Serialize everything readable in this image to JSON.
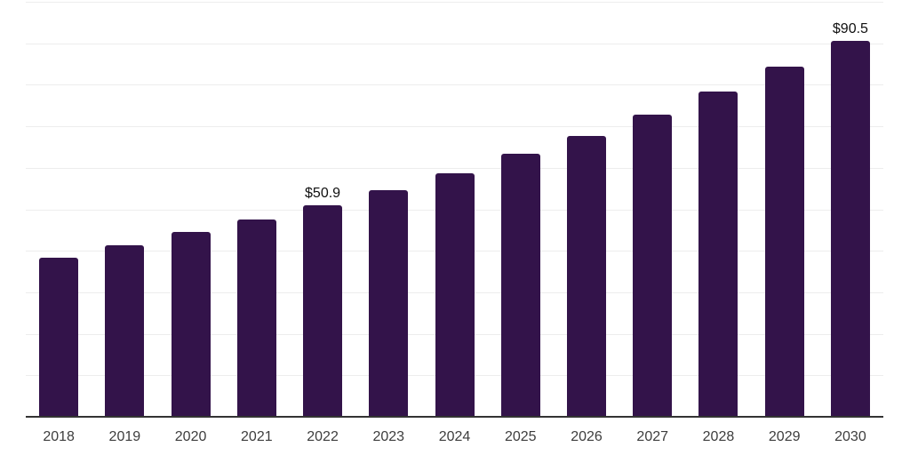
{
  "chart_data": {
    "type": "bar",
    "title": "",
    "xlabel": "",
    "ylabel": "",
    "categories": [
      "2018",
      "2019",
      "2020",
      "2021",
      "2022",
      "2023",
      "2024",
      "2025",
      "2026",
      "2027",
      "2028",
      "2029",
      "2030"
    ],
    "values": [
      38.4,
      41.3,
      44.6,
      47.5,
      50.9,
      54.7,
      58.6,
      63.3,
      67.7,
      72.9,
      78.4,
      84.4,
      90.5
    ],
    "data_labels": [
      null,
      null,
      null,
      null,
      "$50.9",
      null,
      null,
      null,
      null,
      null,
      null,
      null,
      "$90.5"
    ],
    "ylim": [
      0,
      100
    ],
    "gridline_interval": 10,
    "grid": true,
    "legend": false,
    "bar_color": "#33134a",
    "gridline_color": "#ededed",
    "axis_color": "#333333",
    "tick_label_color": "#3d3d3d",
    "data_label_color": "#101010",
    "background_color": "#ffffff"
  }
}
